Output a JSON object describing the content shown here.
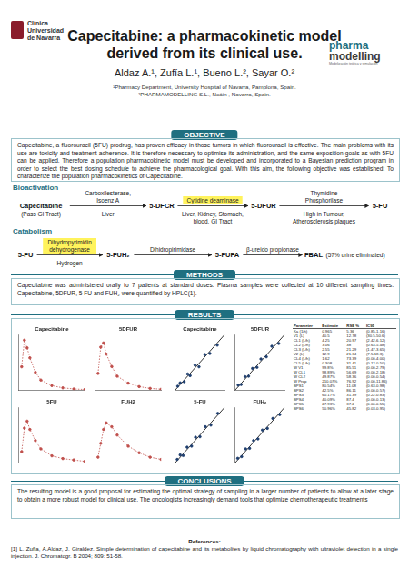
{
  "header": {
    "logo_left": [
      "Clínica",
      "Universidad",
      "de Navarra"
    ],
    "title_lines": [
      "Capecitabine: a pharmacokinetic model",
      "derived from its clinical use."
    ],
    "authors": "Aldaz A.¹, Zufía L.¹, Bueno L.², Sayar O.²",
    "affiliations": [
      "¹Pharmacy Department, University Hospital of Navarra, Pamplona, Spain.",
      "²PHARMAMODELLING S.L., Noáin ,  Navarra, Spain."
    ],
    "logo_right": [
      "pharma",
      "modelling",
      "Modelización teórica y simulación"
    ]
  },
  "objective": {
    "heading": "OBJECTIVE",
    "text": "Capecitabine, a fluorouracil (5FU) prodrug, has proven efficacy in those tumors in which fluorouracil is effective. The main problems with its use are toxicity and treatment adherence. It is therefore necessary to optimise its administration, and the same exposition goals as with 5FU can be applied. Therefore a population pharmacokinetic model must be developed and incorporated to a Bayesian prediction program in order to select the best dosing schedule to achieve the pharmacological goal. With this aim, the following objective was established: To characterize the population pharmacokinetics of Capecitabine."
  },
  "diagram": {
    "bioactivation": {
      "label": "Bioactivation",
      "nodes": [
        {
          "label": "Capecitabine",
          "note": "(Pass GI Tract)"
        },
        {
          "label": "5-DFCR"
        },
        {
          "label": "5-DFUR"
        },
        {
          "label": "5-FU"
        }
      ],
      "steps": [
        {
          "enzyme": [
            "Carboxilesterase,",
            "Isoenz A"
          ],
          "site": [
            "Liver"
          ],
          "highlight": false
        },
        {
          "enzyme": [
            "Cytidine deaminase"
          ],
          "site": [
            "Liver, Kidney, Stomach,",
            "blood, GI Tract"
          ],
          "highlight": true
        },
        {
          "enzyme": [
            "Thymidine",
            "Phosphorilase"
          ],
          "site": [
            "High in Tumour,",
            "Atherosclerosis plaques"
          ],
          "highlight": false
        }
      ]
    },
    "catabolism": {
      "label": "Catabolism",
      "nodes": [
        {
          "label": "5-FU"
        },
        {
          "label": "5-FUH₂"
        },
        {
          "label": "5-FUPA"
        },
        {
          "label": "FBAL",
          "note": "(57% urine eliminated)"
        }
      ],
      "steps": [
        {
          "enzyme": [
            "Dihydropyrimidin",
            "dehydrogenase"
          ],
          "site": [
            "Hydrogen"
          ],
          "highlight": true
        },
        {
          "enzyme": [
            "Dihidropirimidase"
          ],
          "site": [],
          "highlight": false
        },
        {
          "enzyme": [
            "β-ureido propionase"
          ],
          "site": [],
          "highlight": false
        }
      ]
    }
  },
  "methods": {
    "heading": "METHODS",
    "text": "Capecitabine was administered orally to 7 patients at standard doses. Plasma samples were collected at 10 different sampling times. Capecitabine, 5DFUR, 5 FU and FUH₂ were quantified by HPLC(1)."
  },
  "results": {
    "heading": "RESULTS",
    "table": {
      "header": [
        "Parameter",
        "Estimate",
        "RSE %",
        "IC95"
      ],
      "rows": [
        [
          "Ka (1/h)",
          "0.965",
          "5.36",
          "(0.85-1.16)"
        ],
        [
          "V1 (L)",
          "40.5",
          "12.78",
          "(30.5-50.6)"
        ],
        [
          "CL1 (L/h)",
          "4.25",
          "20.97",
          "(2.42-6.12)"
        ],
        [
          "CL2 (L/h)",
          "3.06",
          "38",
          "(0.63-5.48)"
        ],
        [
          "CL3 (L/h)",
          "2.55",
          "21.29",
          "(1.47-3.65)"
        ],
        [
          "V2 (L)",
          "12.9",
          "21.34",
          "(7.5-18.3)"
        ],
        [
          "CL4 (L/h)",
          "1.62",
          "73.39",
          "(0.00-4.00)"
        ],
        [
          "CL5 (L/h)",
          "0.308",
          "31.41",
          "(0.12-0.50)"
        ],
        [
          "W V1",
          "99.8%",
          "85.51",
          "(0.00-2.79)"
        ],
        [
          "W CL1",
          "98.89%",
          "56.69",
          "(0.00-2.18)"
        ],
        [
          "W CL2",
          "49.87%",
          "58.36",
          "(0.00-0.54)"
        ],
        [
          "W Prop",
          "210.07%",
          "76.92",
          "(0.00-11.86)"
        ],
        [
          "BPS1",
          "80.54%",
          "11.08",
          "(0.63-0.98)"
        ],
        [
          "BPS2",
          "42.5%",
          "86.11",
          "(0.00-0.57)"
        ],
        [
          "BPS3",
          "60.17%",
          "31.39",
          "(0.22-0.83)"
        ],
        [
          "BPS4",
          "40.09%",
          "87.4",
          "(0.00-0.13)"
        ],
        [
          "BPS5",
          "27.93%",
          "37.2",
          "(0.00-0.55)"
        ],
        [
          "BPS6",
          "50.96%",
          "45.82",
          "(0.03-0.95)"
        ]
      ]
    }
  },
  "chart_data": [
    {
      "type": "scatter",
      "title": "Capecitabine",
      "xlim": [
        0,
        12
      ],
      "ylim": [
        0,
        5
      ],
      "grid": false,
      "tick_labels": false,
      "series": [
        {
          "color": "#c0504d",
          "marker": "circle",
          "line_style": "dotted",
          "x": [
            0.5,
            1,
            1.5,
            2,
            3,
            4,
            6,
            8,
            10,
            12
          ],
          "values": [
            2.1,
            4.5,
            3.8,
            2.9,
            1.6,
            0.9,
            0.4,
            0.2,
            0.1,
            0.05
          ]
        }
      ]
    },
    {
      "type": "scatter",
      "title": "5DFUR",
      "xlim": [
        0,
        12
      ],
      "ylim": [
        0,
        4
      ],
      "grid": false,
      "tick_labels": false,
      "series": [
        {
          "color": "#c0504d",
          "marker": "circle",
          "line_style": "dotted",
          "x": [
            0.5,
            1,
            1.5,
            2,
            3,
            4,
            6,
            8,
            10,
            12
          ],
          "values": [
            1.2,
            3.1,
            3.4,
            2.6,
            1.7,
            1.0,
            0.5,
            0.25,
            0.12,
            0.06
          ]
        }
      ]
    },
    {
      "type": "scatter",
      "title": "5FU",
      "xlim": [
        0,
        12
      ],
      "ylim": [
        0,
        0.4
      ],
      "grid": false,
      "tick_labels": false,
      "series": [
        {
          "color": "#c0504d",
          "marker": "circle",
          "line_style": "dotted",
          "x": [
            0.5,
            1,
            1.5,
            2,
            3,
            4,
            6,
            8,
            10,
            12
          ],
          "values": [
            0.08,
            0.25,
            0.3,
            0.24,
            0.16,
            0.1,
            0.05,
            0.03,
            0.02,
            0.01
          ]
        }
      ]
    },
    {
      "type": "scatter",
      "title": "FUH2",
      "xlim": [
        0,
        12
      ],
      "ylim": [
        0,
        1
      ],
      "grid": false,
      "tick_labels": false,
      "series": [
        {
          "color": "#c0504d",
          "marker": "circle",
          "line_style": "dotted",
          "x": [
            0.5,
            1,
            1.5,
            2,
            3,
            4,
            6,
            8,
            10,
            12
          ],
          "values": [
            0.1,
            0.35,
            0.6,
            0.72,
            0.65,
            0.5,
            0.3,
            0.18,
            0.1,
            0.06
          ]
        }
      ]
    },
    {
      "type": "scatter",
      "title": "Capecitabine",
      "xlim": [
        0,
        10
      ],
      "ylim": [
        0,
        10
      ],
      "grid": false,
      "tick_labels": false,
      "series": [
        {
          "color": "#1f3f6f",
          "marker": "circle",
          "x": [
            0.5,
            1,
            1.8,
            2.5,
            3,
            4,
            4.8,
            6,
            7,
            8.5
          ],
          "values": [
            0.7,
            1.3,
            1.5,
            2.9,
            2.6,
            4.5,
            4.2,
            6.4,
            6.6,
            8.1
          ]
        },
        {
          "color": "#000000",
          "marker": "none",
          "line_style": "solid",
          "x": [
            0,
            10
          ],
          "values": [
            0,
            10
          ]
        }
      ]
    },
    {
      "type": "scatter",
      "title": "5DFUR",
      "xlim": [
        0,
        10
      ],
      "ylim": [
        0,
        10
      ],
      "grid": false,
      "tick_labels": false,
      "series": [
        {
          "color": "#1f3f6f",
          "marker": "circle",
          "x": [
            0.6,
            1.2,
            2,
            2.7,
            3.5,
            4.4,
            5.2,
            6.3,
            7.4,
            8.8
          ],
          "values": [
            0.9,
            1.0,
            2.4,
            2.5,
            3.9,
            4.1,
            5.6,
            6.0,
            7.9,
            8.4
          ]
        },
        {
          "color": "#000000",
          "marker": "none",
          "line_style": "solid",
          "x": [
            0,
            10
          ],
          "values": [
            0,
            10
          ]
        }
      ]
    },
    {
      "type": "scatter",
      "title": "5-FU",
      "xlim": [
        0,
        10
      ],
      "ylim": [
        0,
        10
      ],
      "grid": false,
      "tick_labels": false,
      "series": [
        {
          "color": "#1f3f6f",
          "marker": "circle",
          "x": [
            0.4,
            1,
            1.6,
            2.4,
            3.3,
            4.1,
            5,
            6.1,
            7.2,
            8.6
          ],
          "values": [
            0.6,
            1.4,
            1.3,
            2.8,
            3.0,
            4.6,
            4.7,
            6.5,
            6.8,
            8.9
          ]
        },
        {
          "color": "#000000",
          "marker": "none",
          "line_style": "solid",
          "x": [
            0,
            10
          ],
          "values": [
            0,
            10
          ]
        }
      ]
    },
    {
      "type": "scatter",
      "title": "FUH₂",
      "xlim": [
        0,
        10
      ],
      "ylim": [
        0,
        10
      ],
      "grid": false,
      "tick_labels": false,
      "series": [
        {
          "color": "#1f3f6f",
          "marker": "circle",
          "x": [
            0.5,
            1.3,
            2.1,
            2.9,
            3.7,
            4.6,
            5.5,
            6.5,
            7.6,
            9
          ],
          "values": [
            0.8,
            1.1,
            2.5,
            2.6,
            4.0,
            4.3,
            5.9,
            6.2,
            8.0,
            8.7
          ]
        },
        {
          "color": "#000000",
          "marker": "none",
          "line_style": "solid",
          "x": [
            0,
            10
          ],
          "values": [
            0,
            10
          ]
        }
      ]
    }
  ],
  "conclusions": {
    "heading": "CONCLUSIONS",
    "text": "The resulting model is a good proposal for estimating the optimal strategy of sampling in a larger number of patients to allow at a later stage to obtain a more robust model for clinical use. The oncologists increasingly demand tools that optimize chemotherapeutic treatments"
  },
  "references": {
    "heading": "References:",
    "items": [
      "[1] L. Zufía, A.Aldaz, J. Giraldez. Simple determination of capecitabine and its metabolites by liquid chromatography with ultraviolet detection in a single injection. J. Chromatogr. B 2004; 809: 51-58."
    ]
  }
}
